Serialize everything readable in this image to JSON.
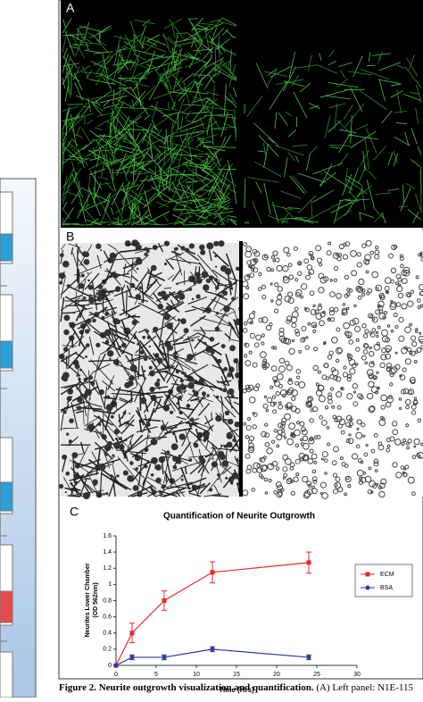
{
  "panels": {
    "a_label": "A",
    "b_label": "B"
  },
  "chart_data": {
    "type": "line",
    "panel_label": "C",
    "title": "Quantification of Neurite Outgrowth",
    "xlabel": "Time (Hrs)",
    "ylabel": [
      "Neurites Lower Chamber",
      "(OD 562nm)"
    ],
    "x": [
      0,
      2,
      6,
      12,
      24
    ],
    "series": [
      {
        "name": "ECM",
        "color": "#e8292a",
        "marker": "square",
        "values": [
          0,
          0.4,
          0.8,
          1.15,
          1.27
        ],
        "errors": [
          0,
          0.12,
          0.12,
          0.13,
          0.13
        ]
      },
      {
        "name": "BSA",
        "color": "#2b3a9e",
        "marker": "circle",
        "values": [
          0,
          0.1,
          0.1,
          0.2,
          0.1
        ],
        "errors": [
          0,
          0.03,
          0.03,
          0.03,
          0.03
        ]
      }
    ],
    "xlim": [
      0,
      30
    ],
    "xticks": [
      0,
      5,
      10,
      15,
      20,
      25,
      30
    ],
    "ylim": [
      0,
      1.6
    ],
    "yticks": [
      0,
      0.2,
      0.4,
      0.6,
      0.8,
      1,
      1.2,
      1.4,
      1.6
    ],
    "legend": "right"
  },
  "caption": {
    "bold": "Figure 2. Neurite outgrowth visualization and quantification.",
    "text": "(A) Left panel: N1E-115"
  }
}
